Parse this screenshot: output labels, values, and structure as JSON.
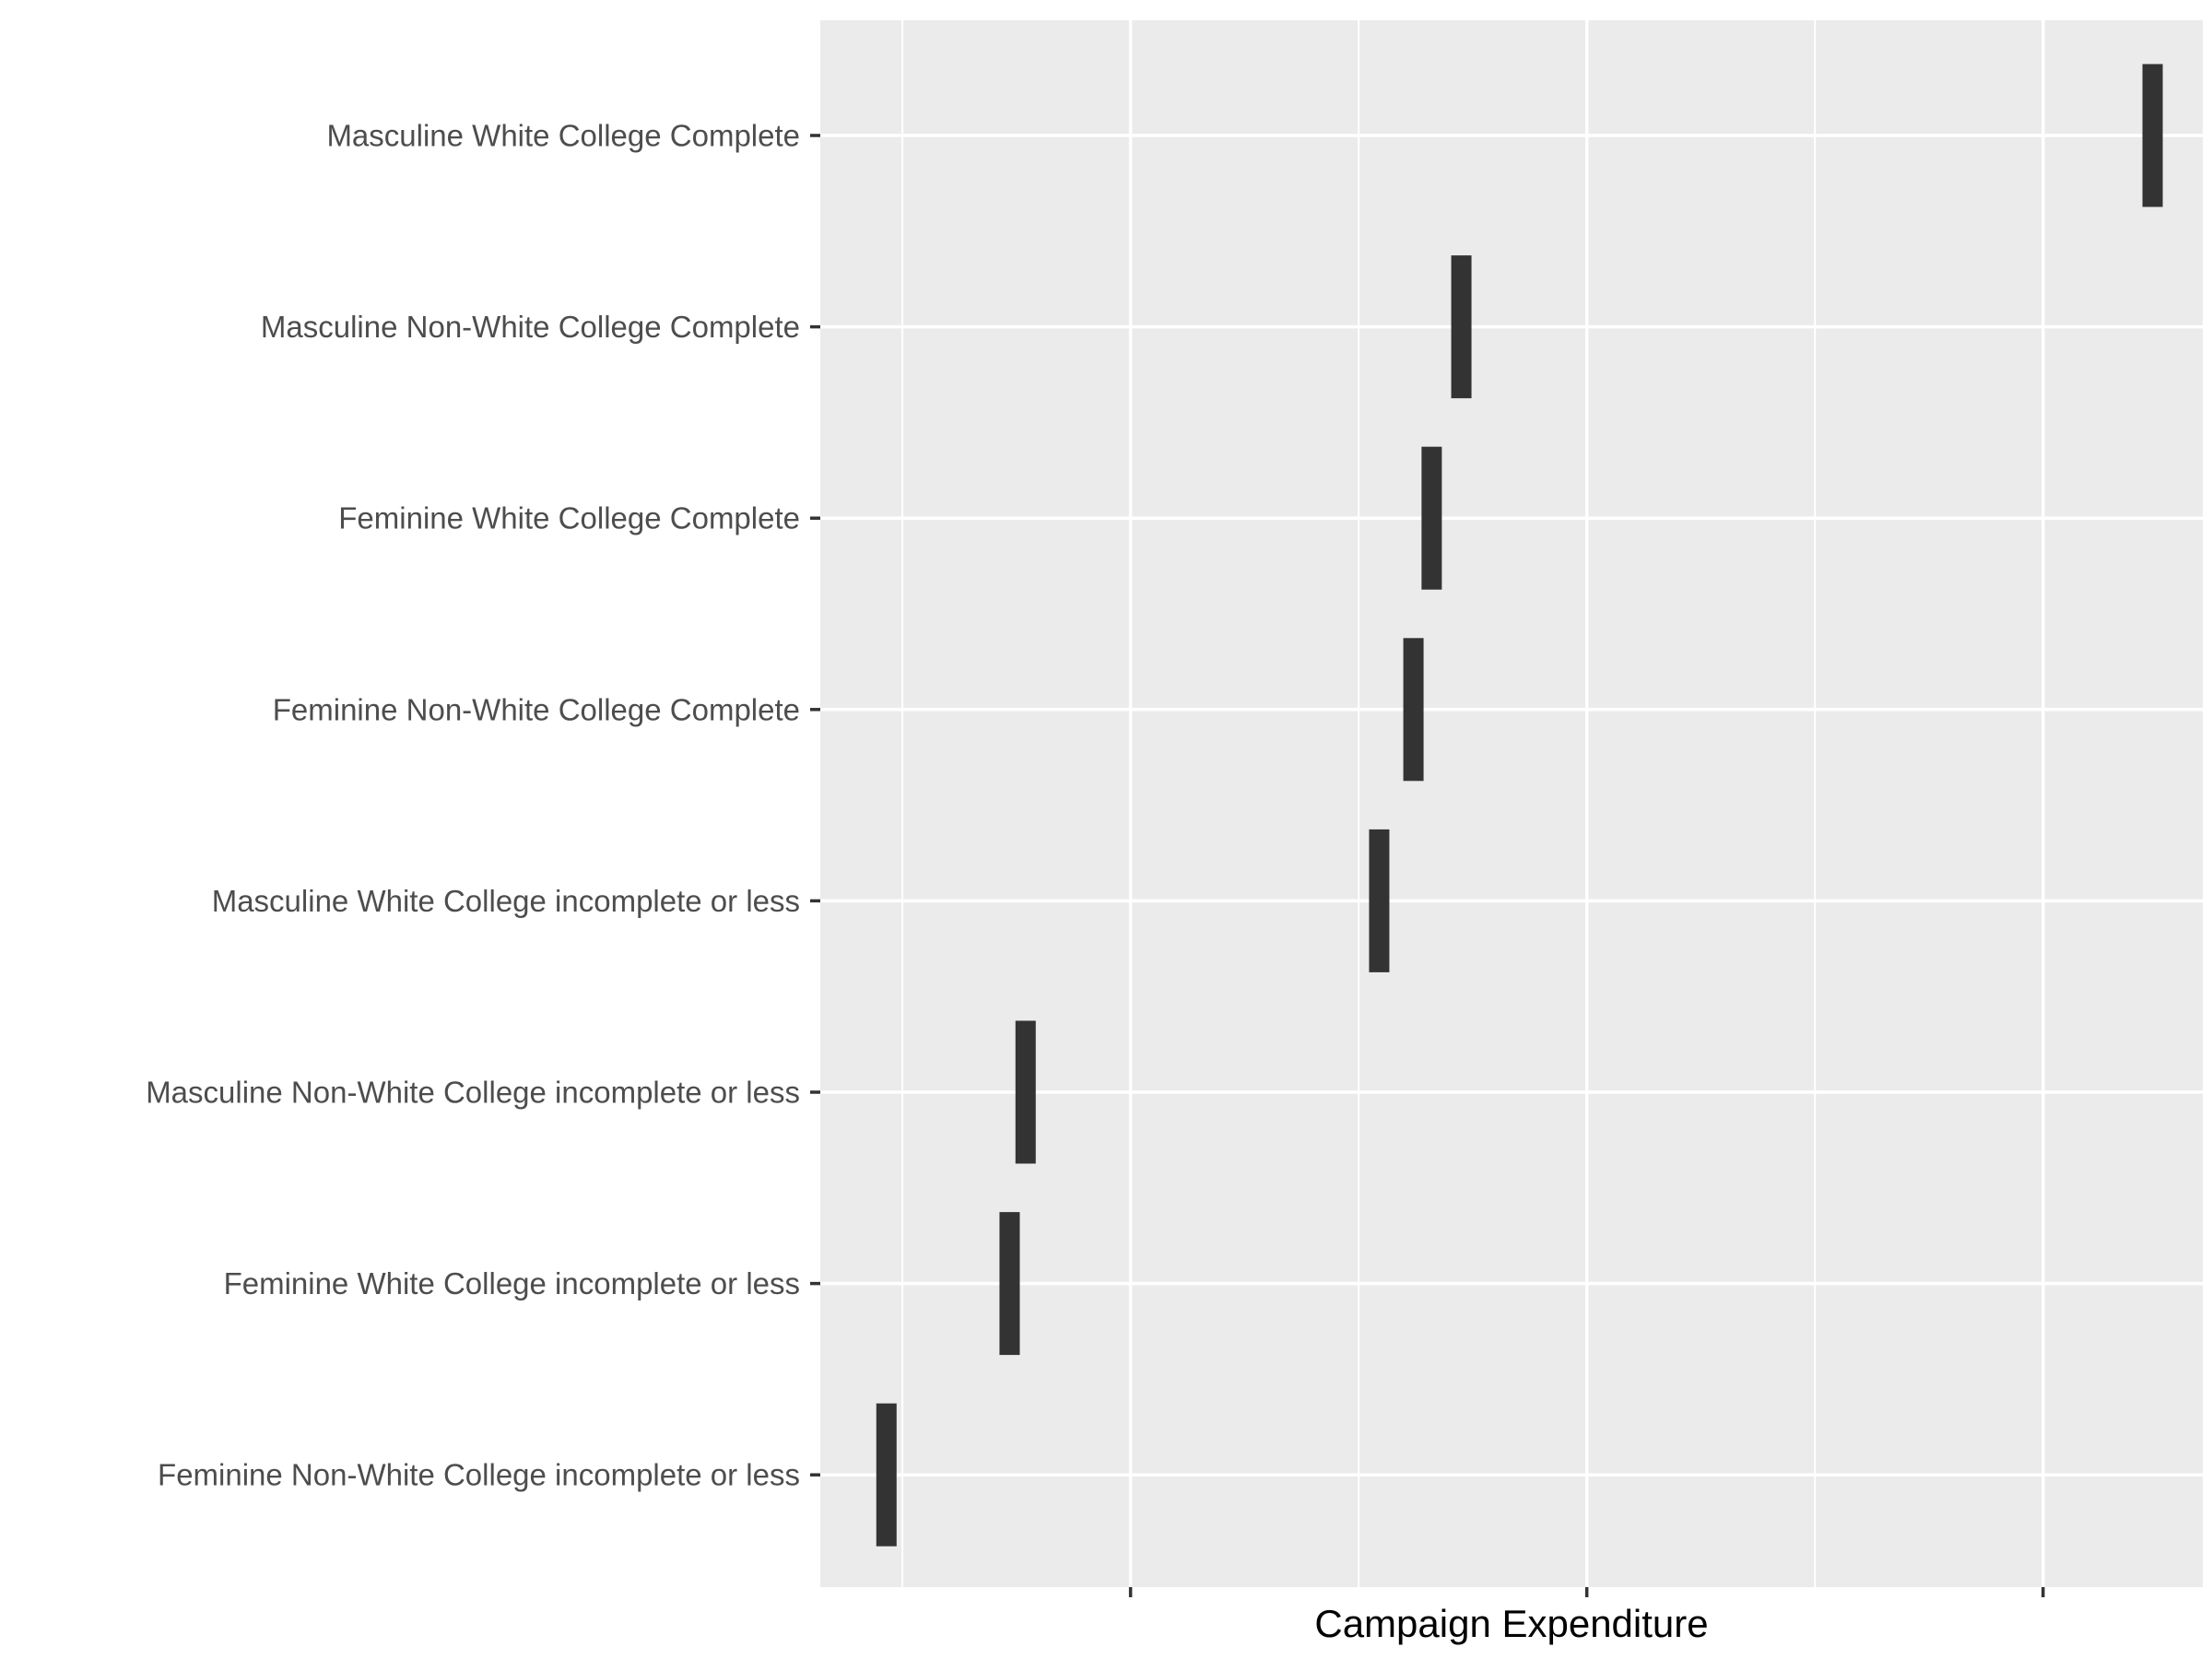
{
  "chart_data": {
    "type": "bar",
    "orientation": "horizontal-markers",
    "xlabel": "Campaign Expenditure",
    "ylabel": "",
    "x_tick_labels_visible": false,
    "xlim": [
      -0.36,
      5.7
    ],
    "major_ticks": [
      1,
      3,
      5
    ],
    "minor_gridlines": [
      0,
      2,
      4
    ],
    "grid": true,
    "categories": [
      "Masculine White College Complete",
      "Masculine Non-White College Complete",
      "Feminine White College Complete",
      "Feminine Non-White College Complete",
      "Masculine White College incomplete or less",
      "Masculine Non-White College incomplete or less",
      "Feminine White College incomplete or less",
      "Feminine Non-White College incomplete or less"
    ],
    "values": [
      5.48,
      2.45,
      2.32,
      2.24,
      2.09,
      0.54,
      0.47,
      -0.07
    ],
    "colors": {
      "panel": "#ebebeb",
      "grid": "#ffffff",
      "mark": "#333333",
      "tick_label": "#4d4d4d",
      "axis_title": "#000000"
    }
  }
}
